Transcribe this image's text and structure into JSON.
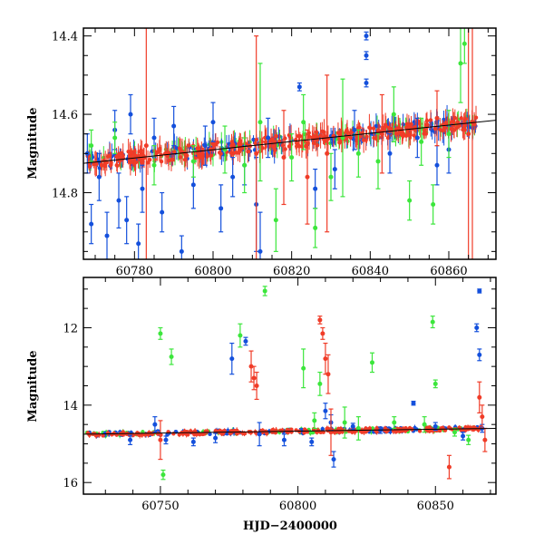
{
  "colors": {
    "green": "#3ce63c",
    "blue": "#1450dc",
    "red": "#f03c28"
  },
  "chart_data": [
    {
      "type": "scatter",
      "ylabel": "Magnitude",
      "xlabel": "",
      "xlim": [
        60767,
        60872
      ],
      "ylim": [
        14.97,
        14.38
      ],
      "y_inverted": true,
      "x_ticks": [
        60780,
        60800,
        60820,
        60840,
        60860
      ],
      "y_ticks": [
        14.4,
        14.6,
        14.8
      ],
      "trend_line": {
        "x": [
          60767,
          60872
        ],
        "y": [
          14.725,
          14.615
        ]
      },
      "series": [
        {
          "color_key": "blue",
          "points": [
            [
              60768,
              14.7,
              0.05
            ],
            [
              60769,
              14.88,
              0.05
            ],
            [
              60771,
              14.76,
              0.06
            ],
            [
              60773,
              14.91,
              0.06
            ],
            [
              60775,
              14.64,
              0.05
            ],
            [
              60776,
              14.82,
              0.07
            ],
            [
              60778,
              14.87,
              0.06
            ],
            [
              60779,
              14.6,
              0.05
            ],
            [
              60781,
              14.93,
              0.05
            ],
            [
              60782,
              14.79,
              0.06
            ],
            [
              60785,
              14.66,
              0.05
            ],
            [
              60787,
              14.85,
              0.05
            ],
            [
              60790,
              14.63,
              0.05
            ],
            [
              60792,
              14.95,
              0.04
            ],
            [
              60795,
              14.78,
              0.06
            ],
            [
              60798,
              14.68,
              0.05
            ],
            [
              60800,
              14.62,
              0.05
            ],
            [
              60802,
              14.84,
              0.06
            ],
            [
              60805,
              14.76,
              0.05
            ],
            [
              60808,
              14.73,
              0.05
            ],
            [
              60811,
              14.83,
              0.12
            ],
            [
              60812,
              14.95,
              0.1
            ],
            [
              60814,
              14.66,
              0.05
            ],
            [
              60822,
              14.53,
              0.01
            ],
            [
              60826,
              14.79,
              0.05
            ],
            [
              60831,
              14.74,
              0.05
            ],
            [
              60836,
              14.64,
              0.05
            ],
            [
              60839,
              14.4,
              0.01
            ],
            [
              60839,
              14.45,
              0.01
            ],
            [
              60839,
              14.52,
              0.01
            ],
            [
              60845,
              14.7,
              0.05
            ],
            [
              60852,
              14.66,
              0.05
            ],
            [
              60857,
              14.73,
              0.05
            ],
            [
              60860,
              14.69,
              0.06
            ]
          ]
        },
        {
          "color_key": "green",
          "points": [
            [
              60769,
              14.68,
              0.04
            ],
            [
              60775,
              14.66,
              0.04
            ],
            [
              60785,
              14.73,
              0.05
            ],
            [
              60795,
              14.72,
              0.04
            ],
            [
              60803,
              14.69,
              0.06
            ],
            [
              60808,
              14.73,
              0.07
            ],
            [
              60812,
              14.62,
              0.15
            ],
            [
              60816,
              14.87,
              0.08
            ],
            [
              60820,
              14.71,
              0.06
            ],
            [
              60823,
              14.62,
              0.07
            ],
            [
              60826,
              14.89,
              0.05
            ],
            [
              60830,
              14.76,
              0.06
            ],
            [
              60833,
              14.66,
              0.15
            ],
            [
              60837,
              14.7,
              0.06
            ],
            [
              60842,
              14.72,
              0.07
            ],
            [
              60846,
              14.6,
              0.07
            ],
            [
              60850,
              14.82,
              0.05
            ],
            [
              60853,
              14.67,
              0.06
            ],
            [
              60856,
              14.83,
              0.05
            ],
            [
              60860,
              14.65,
              0.06
            ],
            [
              60863,
              14.47,
              0.1
            ],
            [
              60864,
              14.42,
              0.05
            ]
          ]
        },
        {
          "color_key": "red",
          "points": [
            [
              60783,
              14.68,
              0.3
            ],
            [
              60811,
              14.7,
              0.3
            ],
            [
              60818,
              14.71,
              0.12
            ],
            [
              60824,
              14.76,
              0.12
            ],
            [
              60829,
              14.7,
              0.2
            ],
            [
              60843,
              14.65,
              0.1
            ],
            [
              60857,
              14.61,
              0.07
            ],
            [
              60865,
              14.65,
              0.4
            ],
            [
              60866,
              14.62,
              0.5
            ]
          ]
        }
      ]
    },
    {
      "type": "scatter",
      "ylabel": "Magnitude",
      "xlabel": "HJD−2400000",
      "xlim": [
        60722,
        60872
      ],
      "ylim": [
        16.3,
        10.7
      ],
      "y_inverted": true,
      "x_ticks": [
        60750,
        60800,
        60850
      ],
      "y_ticks": [
        12,
        14,
        16
      ],
      "trend_line": {
        "x": [
          60722,
          60872
        ],
        "y": [
          14.75,
          14.6
        ]
      },
      "series": [
        {
          "color_key": "blue",
          "points": [
            [
              60739,
              14.9,
              0.12
            ],
            [
              60748,
              14.5,
              0.2
            ],
            [
              60752,
              14.9,
              0.1
            ],
            [
              60762,
              14.95,
              0.1
            ],
            [
              60770,
              14.85,
              0.12
            ],
            [
              60776,
              12.8,
              0.4
            ],
            [
              60781,
              12.35,
              0.1
            ],
            [
              60786,
              14.75,
              0.3
            ],
            [
              60795,
              14.9,
              0.15
            ],
            [
              60805,
              14.95,
              0.1
            ],
            [
              60810,
              14.15,
              0.2
            ],
            [
              60812,
              14.45,
              0.2
            ],
            [
              60813,
              15.4,
              0.2
            ],
            [
              60820,
              14.55,
              0.08
            ],
            [
              60830,
              14.65,
              0.08
            ],
            [
              60842,
              13.95,
              0.05
            ],
            [
              60850,
              14.55,
              0.1
            ],
            [
              60860,
              14.8,
              0.1
            ],
            [
              60865,
              12.0,
              0.1
            ],
            [
              60866,
              11.05,
              0.05
            ],
            [
              60866,
              12.7,
              0.15
            ],
            [
              60867,
              14.6,
              0.1
            ]
          ]
        },
        {
          "color_key": "green",
          "points": [
            [
              60750,
              12.15,
              0.15
            ],
            [
              60751,
              15.8,
              0.12
            ],
            [
              60754,
              12.75,
              0.2
            ],
            [
              60779,
              12.2,
              0.3
            ],
            [
              60788,
              11.05,
              0.12
            ],
            [
              60802,
              13.05,
              0.5
            ],
            [
              60806,
              14.4,
              0.2
            ],
            [
              60808,
              13.45,
              0.3
            ],
            [
              60817,
              14.45,
              0.4
            ],
            [
              60822,
              14.6,
              0.3
            ],
            [
              60827,
              12.9,
              0.25
            ],
            [
              60835,
              14.45,
              0.15
            ],
            [
              60846,
              14.5,
              0.2
            ],
            [
              60849,
              11.85,
              0.15
            ],
            [
              60850,
              13.45,
              0.1
            ],
            [
              60857,
              14.7,
              0.1
            ],
            [
              60862,
              14.9,
              0.12
            ]
          ]
        },
        {
          "color_key": "red",
          "points": [
            [
              60750,
              14.9,
              0.5
            ],
            [
              60783,
              13.0,
              0.4
            ],
            [
              60784,
              13.3,
              0.3
            ],
            [
              60785,
              13.5,
              0.35
            ],
            [
              60808,
              11.8,
              0.1
            ],
            [
              60809,
              12.15,
              0.15
            ],
            [
              60810,
              12.8,
              0.4
            ],
            [
              60811,
              13.2,
              0.5
            ],
            [
              60812,
              14.7,
              0.6
            ],
            [
              60855,
              15.6,
              0.3
            ],
            [
              60866,
              13.8,
              0.4
            ],
            [
              60867,
              14.3,
              0.3
            ],
            [
              60868,
              14.9,
              0.3
            ]
          ]
        }
      ]
    }
  ]
}
